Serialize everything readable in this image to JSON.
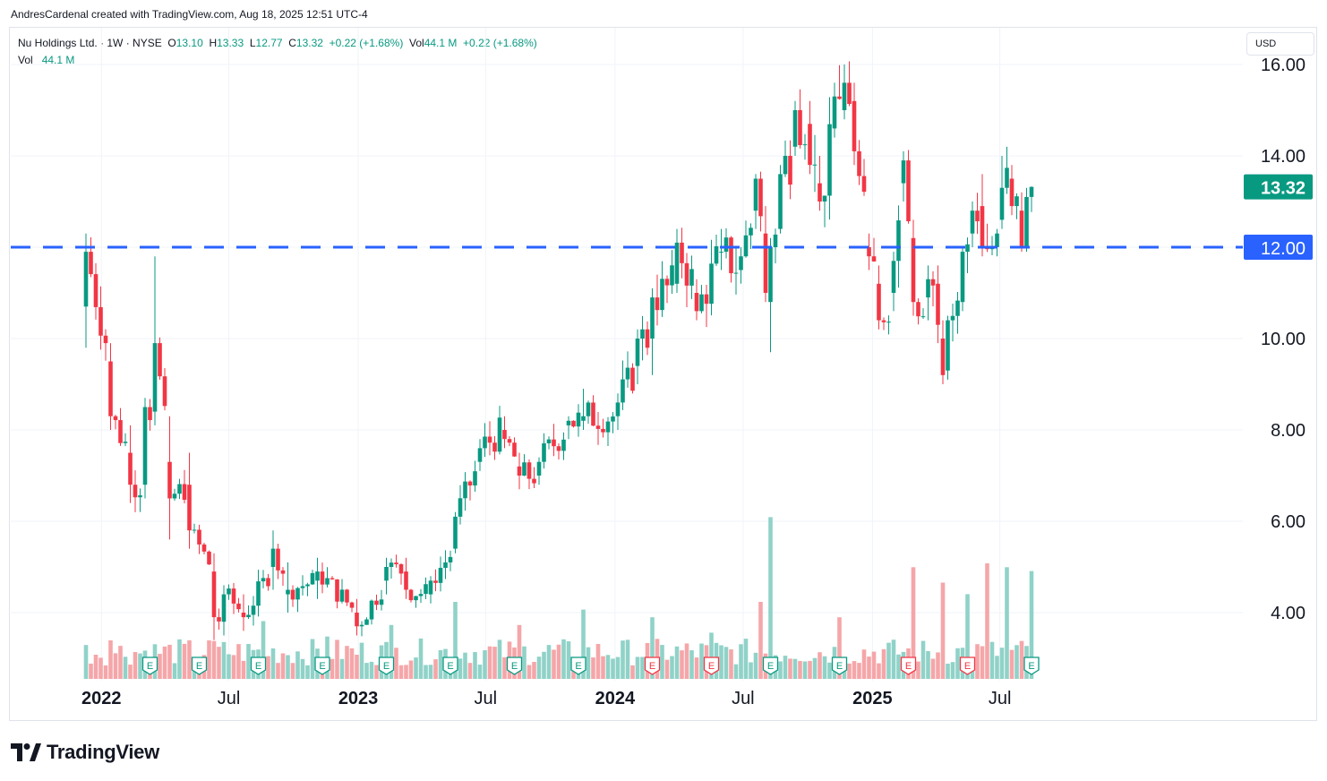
{
  "credit": "AndresCardenal created with TradingView.com, Aug 18, 2025 12:51 UTC-4",
  "legend": {
    "symbol": "Nu Holdings Ltd. · 1W · NYSE",
    "open_label": "O",
    "open": "13.10",
    "high_label": "H",
    "high": "13.33",
    "low_label": "L",
    "low": "12.77",
    "close_label": "C",
    "close": "13.32",
    "change": "+0.22 (+1.68%)",
    "vol_label": "Vol",
    "vol": "44.1 M",
    "vol_change": "+0.22 (+1.68%)",
    "vol_row_label": "Vol",
    "vol_row_value": "44.1 M"
  },
  "currency": "USD",
  "brand": "TradingView",
  "colors": {
    "up": "#089981",
    "down": "#f23645",
    "vol_up": "#90d2c8",
    "vol_down": "#f5a6a9",
    "hline": "#2962ff"
  },
  "chart_data": {
    "type": "candlestick",
    "symbol": "Nu Holdings Ltd.",
    "interval": "1W",
    "exchange": "NYSE",
    "currency": "USD",
    "ylim": [
      2.6,
      16.4
    ],
    "y_ticks": [
      "16.00",
      "14.00",
      "12.00",
      "10.00",
      "8.00",
      "6.00",
      "4.00"
    ],
    "x_ticks": [
      {
        "label": "2022",
        "date": "2022-01-01",
        "bold": true
      },
      {
        "label": "Jul",
        "date": "2022-07-01",
        "bold": false
      },
      {
        "label": "2023",
        "date": "2023-01-01",
        "bold": true
      },
      {
        "label": "Jul",
        "date": "2023-07-01",
        "bold": false
      },
      {
        "label": "2024",
        "date": "2024-01-01",
        "bold": true
      },
      {
        "label": "Jul",
        "date": "2024-07-01",
        "bold": false
      },
      {
        "label": "2025",
        "date": "2025-01-01",
        "bold": true
      },
      {
        "label": "Jul",
        "date": "2025-07-01",
        "bold": false
      }
    ],
    "horizontal_line": {
      "value": 12.0,
      "label": "12.00",
      "style": "dashed"
    },
    "last_price": {
      "value": 13.32,
      "label": "13.32"
    },
    "start_date": "2021-12-10",
    "end_date": "2025-08-15",
    "anchors": [
      {
        "date": "2021-12-10",
        "o": 10.7,
        "h": 12.3,
        "l": 9.8,
        "c": 11.9
      },
      {
        "date": "2022-01-14",
        "o": 9.5,
        "h": 9.9,
        "l": 8.0,
        "c": 8.3
      },
      {
        "date": "2022-02-11",
        "o": 7.5,
        "h": 8.1,
        "l": 6.4,
        "c": 6.8
      },
      {
        "date": "2022-03-04",
        "o": 6.8,
        "h": 8.7,
        "l": 6.5,
        "c": 8.5
      },
      {
        "date": "2022-03-18",
        "o": 8.4,
        "h": 11.8,
        "l": 8.1,
        "c": 9.9
      },
      {
        "date": "2022-04-08",
        "o": 7.3,
        "h": 8.3,
        "l": 5.6,
        "c": 6.5
      },
      {
        "date": "2022-05-06",
        "o": 6.8,
        "h": 7.5,
        "l": 5.4,
        "c": 5.8
      },
      {
        "date": "2022-06-10",
        "o": 4.9,
        "h": 5.3,
        "l": 3.4,
        "c": 3.9
      },
      {
        "date": "2022-06-24",
        "o": 3.8,
        "h": 4.6,
        "l": 3.5,
        "c": 4.4
      },
      {
        "date": "2022-07-22",
        "o": 4.0,
        "h": 4.4,
        "l": 3.6,
        "c": 3.9
      },
      {
        "date": "2022-09-02",
        "o": 5.0,
        "h": 5.8,
        "l": 4.5,
        "c": 5.4
      },
      {
        "date": "2022-09-23",
        "o": 4.4,
        "h": 5.1,
        "l": 4.0,
        "c": 4.5
      },
      {
        "date": "2022-11-04",
        "o": 4.7,
        "h": 5.2,
        "l": 4.3,
        "c": 4.9
      },
      {
        "date": "2022-12-30",
        "o": 4.0,
        "h": 4.3,
        "l": 3.5,
        "c": 3.7
      },
      {
        "date": "2023-02-10",
        "o": 4.7,
        "h": 5.2,
        "l": 4.4,
        "c": 5.0
      },
      {
        "date": "2023-03-10",
        "o": 4.9,
        "h": 5.2,
        "l": 4.3,
        "c": 4.5
      },
      {
        "date": "2023-04-14",
        "o": 4.4,
        "h": 4.8,
        "l": 4.2,
        "c": 4.7
      },
      {
        "date": "2023-05-19",
        "o": 5.4,
        "h": 6.2,
        "l": 5.3,
        "c": 6.1
      },
      {
        "date": "2023-06-23",
        "o": 7.3,
        "h": 7.8,
        "l": 7.1,
        "c": 7.6
      },
      {
        "date": "2023-07-28",
        "o": 8.0,
        "h": 8.3,
        "l": 7.6,
        "c": 7.8
      },
      {
        "date": "2023-08-18",
        "o": 7.2,
        "h": 7.5,
        "l": 6.7,
        "c": 7.0
      },
      {
        "date": "2023-09-15",
        "o": 7.0,
        "h": 7.4,
        "l": 6.8,
        "c": 7.3
      },
      {
        "date": "2023-10-27",
        "o": 8.1,
        "h": 8.3,
        "l": 7.8,
        "c": 8.2
      },
      {
        "date": "2023-11-17",
        "o": 8.2,
        "h": 8.9,
        "l": 8.0,
        "c": 8.3
      },
      {
        "date": "2024-01-05",
        "o": 8.3,
        "h": 8.8,
        "l": 8.0,
        "c": 8.6
      },
      {
        "date": "2024-02-02",
        "o": 9.4,
        "h": 10.2,
        "l": 9.0,
        "c": 10.0
      },
      {
        "date": "2024-02-23",
        "o": 10.0,
        "h": 11.1,
        "l": 9.2,
        "c": 10.9
      },
      {
        "date": "2024-03-29",
        "o": 11.2,
        "h": 12.4,
        "l": 11.0,
        "c": 12.1
      },
      {
        "date": "2024-04-26",
        "o": 11.0,
        "h": 11.3,
        "l": 10.4,
        "c": 10.6
      },
      {
        "date": "2024-05-31",
        "o": 11.9,
        "h": 12.4,
        "l": 11.5,
        "c": 11.9
      },
      {
        "date": "2024-06-28",
        "o": 11.5,
        "h": 12.0,
        "l": 11.2,
        "c": 11.8
      },
      {
        "date": "2024-07-19",
        "o": 12.8,
        "h": 13.6,
        "l": 12.4,
        "c": 13.5
      },
      {
        "date": "2024-08-02",
        "o": 12.3,
        "h": 12.9,
        "l": 10.8,
        "c": 11.0
      },
      {
        "date": "2024-08-09",
        "o": 10.8,
        "h": 12.2,
        "l": 9.7,
        "c": 12.0
      },
      {
        "date": "2024-08-23",
        "o": 12.4,
        "h": 13.8,
        "l": 12.3,
        "c": 13.6
      },
      {
        "date": "2024-09-13",
        "o": 14.2,
        "h": 15.2,
        "l": 14.0,
        "c": 15.0
      },
      {
        "date": "2024-10-04",
        "o": 14.7,
        "h": 15.2,
        "l": 13.6,
        "c": 13.8
      },
      {
        "date": "2024-10-18",
        "o": 13.4,
        "h": 14.0,
        "l": 12.8,
        "c": 13.0
      },
      {
        "date": "2024-11-08",
        "o": 14.6,
        "h": 15.6,
        "l": 14.4,
        "c": 15.3
      },
      {
        "date": "2024-11-22",
        "o": 15.0,
        "h": 16.0,
        "l": 14.8,
        "c": 15.6
      },
      {
        "date": "2024-12-06",
        "o": 15.2,
        "h": 15.6,
        "l": 13.8,
        "c": 14.1
      },
      {
        "date": "2024-12-27",
        "o": 12.0,
        "h": 12.3,
        "l": 11.5,
        "c": 11.8
      },
      {
        "date": "2025-01-10",
        "o": 11.2,
        "h": 11.6,
        "l": 10.2,
        "c": 10.4
      },
      {
        "date": "2025-01-31",
        "o": 11.0,
        "h": 11.9,
        "l": 10.6,
        "c": 11.7
      },
      {
        "date": "2025-02-14",
        "o": 13.4,
        "h": 14.1,
        "l": 13.0,
        "c": 13.9
      },
      {
        "date": "2025-02-28",
        "o": 12.2,
        "h": 12.6,
        "l": 10.5,
        "c": 10.8
      },
      {
        "date": "2025-03-21",
        "o": 10.9,
        "h": 11.6,
        "l": 10.4,
        "c": 11.3
      },
      {
        "date": "2025-04-04",
        "o": 11.2,
        "h": 11.6,
        "l": 9.9,
        "c": 10.3
      },
      {
        "date": "2025-04-11",
        "o": 10.0,
        "h": 10.4,
        "l": 9.0,
        "c": 9.2
      },
      {
        "date": "2025-04-18",
        "o": 9.3,
        "h": 10.5,
        "l": 9.1,
        "c": 10.4
      },
      {
        "date": "2025-05-09",
        "o": 10.8,
        "h": 12.0,
        "l": 10.6,
        "c": 11.9
      },
      {
        "date": "2025-05-23",
        "o": 12.3,
        "h": 13.0,
        "l": 12.0,
        "c": 12.8
      },
      {
        "date": "2025-06-06",
        "o": 12.9,
        "h": 13.6,
        "l": 11.8,
        "c": 12.0
      },
      {
        "date": "2025-06-27",
        "o": 12.0,
        "h": 12.4,
        "l": 11.8,
        "c": 12.3
      },
      {
        "date": "2025-07-04",
        "o": 12.6,
        "h": 14.0,
        "l": 12.4,
        "c": 13.3
      },
      {
        "date": "2025-07-18",
        "o": 13.5,
        "h": 13.8,
        "l": 12.7,
        "c": 12.9
      },
      {
        "date": "2025-08-01",
        "o": 12.8,
        "h": 13.2,
        "l": 11.9,
        "c": 12.0
      },
      {
        "date": "2025-08-08",
        "o": 12.0,
        "h": 13.3,
        "l": 11.9,
        "c": 13.1
      },
      {
        "date": "2025-08-15",
        "o": 13.1,
        "h": 13.33,
        "l": 12.77,
        "c": 13.32
      }
    ],
    "volume": {
      "last": "44.1 M",
      "spikes": [
        {
          "date": "2022-01-14",
          "value": 1.0
        },
        {
          "date": "2022-06-03",
          "value": 1.0
        },
        {
          "date": "2022-08-19",
          "value": 1.5
        },
        {
          "date": "2022-11-18",
          "value": 1.1
        },
        {
          "date": "2023-02-17",
          "value": 1.4
        },
        {
          "date": "2023-05-19",
          "value": 2.0
        },
        {
          "date": "2023-08-18",
          "value": 1.4
        },
        {
          "date": "2023-11-17",
          "value": 1.8
        },
        {
          "date": "2024-02-23",
          "value": 1.6
        },
        {
          "date": "2024-05-17",
          "value": 1.2
        },
        {
          "date": "2024-07-26",
          "value": 2.0
        },
        {
          "date": "2024-08-09",
          "value": 4.2
        },
        {
          "date": "2024-11-15",
          "value": 1.6
        },
        {
          "date": "2025-02-28",
          "value": 2.9
        },
        {
          "date": "2025-04-11",
          "value": 2.5
        },
        {
          "date": "2025-05-16",
          "value": 2.2
        },
        {
          "date": "2025-06-13",
          "value": 3.0
        },
        {
          "date": "2025-07-11",
          "value": 2.9
        },
        {
          "date": "2025-08-15",
          "value": 2.8
        }
      ]
    },
    "earnings_markers": [
      {
        "date": "2022-03-11",
        "label": "E",
        "kind": "beat"
      },
      {
        "date": "2022-05-20",
        "label": "E",
        "kind": "beat"
      },
      {
        "date": "2022-08-12",
        "label": "E",
        "kind": "beat"
      },
      {
        "date": "2022-11-11",
        "label": "E",
        "kind": "beat"
      },
      {
        "date": "2023-02-10",
        "label": "E",
        "kind": "beat"
      },
      {
        "date": "2023-05-12",
        "label": "E",
        "kind": "beat"
      },
      {
        "date": "2023-08-11",
        "label": "E",
        "kind": "beat"
      },
      {
        "date": "2023-11-10",
        "label": "E",
        "kind": "beat"
      },
      {
        "date": "2024-02-23",
        "label": "E",
        "kind": "miss"
      },
      {
        "date": "2024-05-17",
        "label": "E",
        "kind": "miss"
      },
      {
        "date": "2024-08-09",
        "label": "E",
        "kind": "beat"
      },
      {
        "date": "2024-11-15",
        "label": "E",
        "kind": "beat"
      },
      {
        "date": "2025-02-21",
        "label": "E",
        "kind": "miss"
      },
      {
        "date": "2025-05-16",
        "label": "E",
        "kind": "miss"
      },
      {
        "date": "2025-08-15",
        "label": "E",
        "kind": "beat"
      }
    ]
  }
}
